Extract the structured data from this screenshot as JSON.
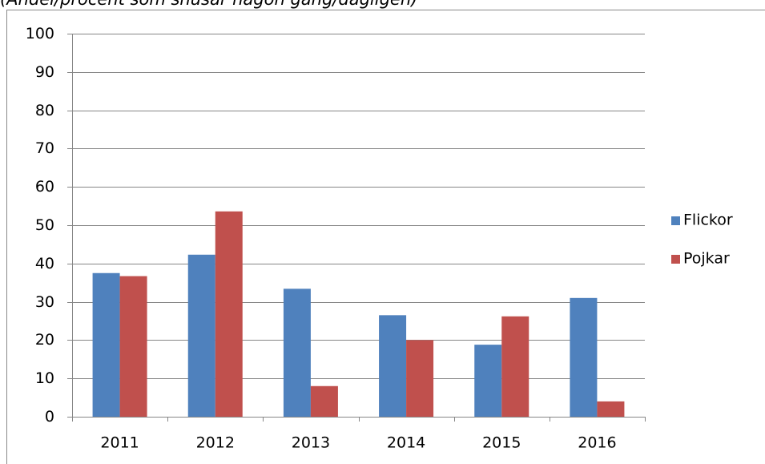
{
  "chart_data": {
    "type": "bar",
    "subtitle": "(Andel/procent som snusar någon gång/dagligen)",
    "categories": [
      "2011",
      "2012",
      "2013",
      "2014",
      "2015",
      "2016"
    ],
    "series": [
      {
        "name": "Flickor",
        "color": "#4f81bd",
        "values": [
          37.5,
          42.3,
          33.4,
          26.5,
          18.8,
          31.0
        ]
      },
      {
        "name": "Pojkar",
        "color": "#c0504d",
        "values": [
          36.7,
          53.6,
          8.0,
          20.0,
          26.2,
          4.0
        ]
      }
    ],
    "ylim": [
      0,
      100
    ],
    "yticks": [
      0,
      10,
      20,
      30,
      40,
      50,
      60,
      70,
      80,
      90,
      100
    ],
    "grid": true,
    "legend": "right"
  }
}
